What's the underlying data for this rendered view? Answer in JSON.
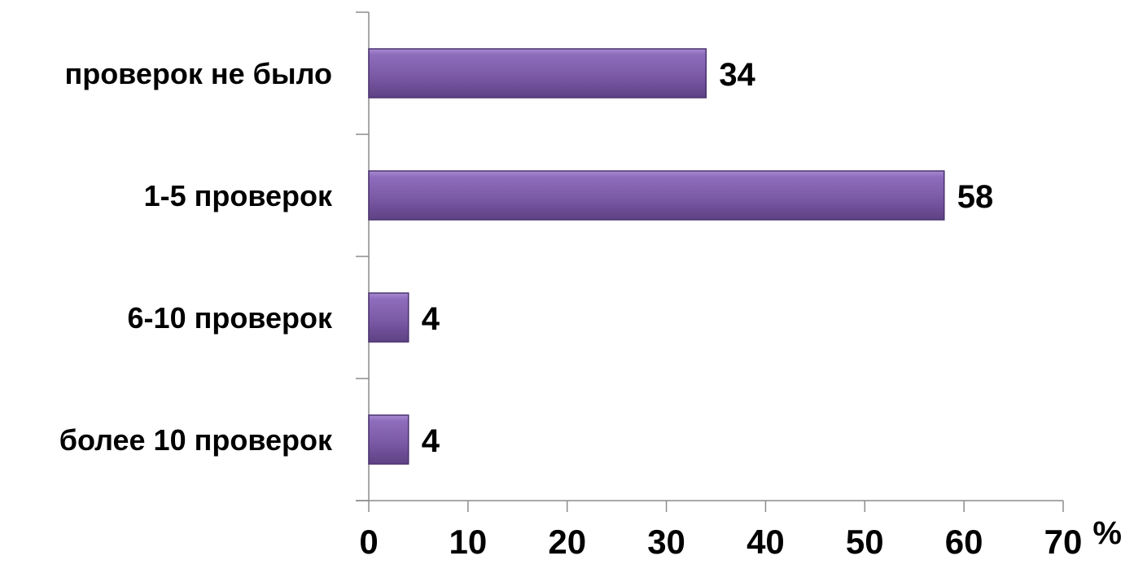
{
  "chart_data": {
    "type": "bar",
    "orientation": "horizontal",
    "categories": [
      "проверок не было",
      "1-5 проверок",
      "6-10 проверок",
      "более 10 проверок"
    ],
    "values": [
      34,
      58,
      4,
      4
    ],
    "data_labels": [
      "34",
      "58",
      "4",
      "4"
    ],
    "title": "",
    "xlabel": "%",
    "ylabel": "",
    "xlim": [
      0,
      70
    ],
    "x_ticks": [
      0,
      10,
      20,
      30,
      40,
      50,
      60,
      70
    ],
    "x_tick_labels": [
      "0",
      "10",
      "20",
      "30",
      "40",
      "50",
      "60",
      "70"
    ],
    "grid": false,
    "legend": "none",
    "bar_color": "#7b5aa6"
  }
}
